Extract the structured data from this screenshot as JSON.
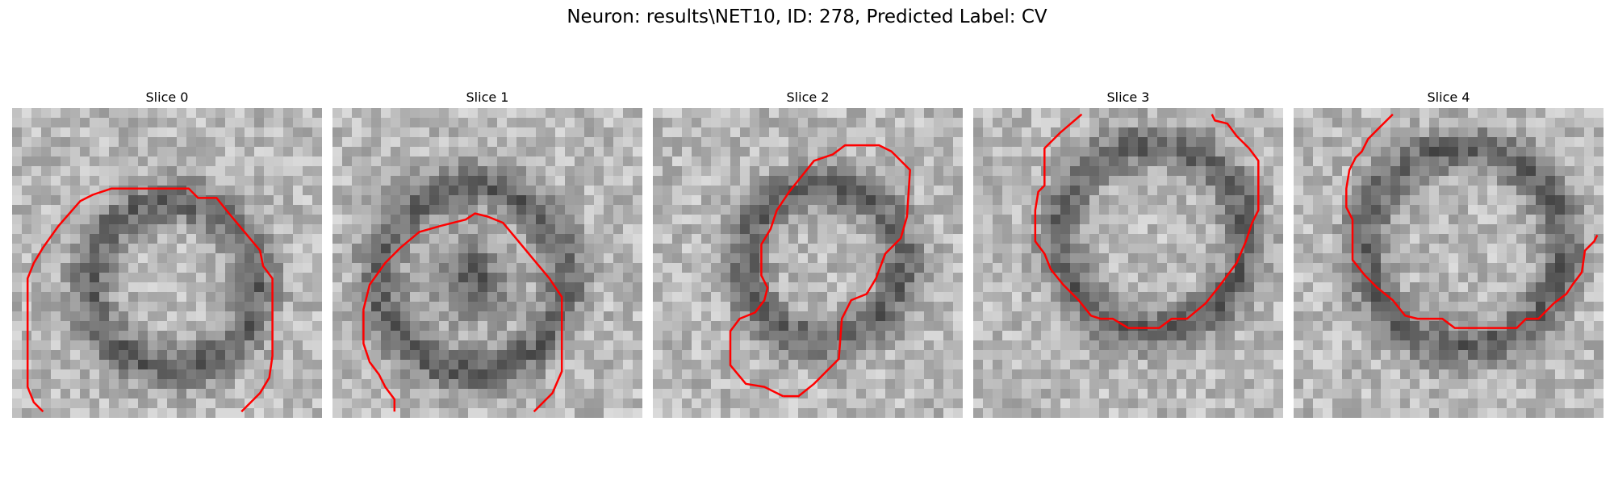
{
  "figure": {
    "title": "Neuron: results\\NET10, ID: 278, Predicted Label: CV",
    "contour_color": "#ff0000",
    "colormap": "grayscale"
  },
  "panels": [
    {
      "title": "Slice 0",
      "contour": [
        [
          0.1,
          0.98
        ],
        [
          0.07,
          0.95
        ],
        [
          0.05,
          0.9
        ],
        [
          0.05,
          0.55
        ],
        [
          0.07,
          0.5
        ],
        [
          0.1,
          0.45
        ],
        [
          0.15,
          0.38
        ],
        [
          0.22,
          0.3
        ],
        [
          0.26,
          0.28
        ],
        [
          0.32,
          0.26
        ],
        [
          0.57,
          0.26
        ],
        [
          0.6,
          0.29
        ],
        [
          0.66,
          0.29
        ],
        [
          0.7,
          0.34
        ],
        [
          0.75,
          0.4
        ],
        [
          0.8,
          0.46
        ],
        [
          0.81,
          0.51
        ],
        [
          0.84,
          0.55
        ],
        [
          0.84,
          0.8
        ],
        [
          0.83,
          0.87
        ],
        [
          0.8,
          0.92
        ],
        [
          0.74,
          0.98
        ]
      ]
    },
    {
      "title": "Slice 1",
      "contour": [
        [
          0.2,
          0.98
        ],
        [
          0.2,
          0.94
        ],
        [
          0.17,
          0.9
        ],
        [
          0.15,
          0.86
        ],
        [
          0.12,
          0.82
        ],
        [
          0.1,
          0.76
        ],
        [
          0.1,
          0.65
        ],
        [
          0.12,
          0.57
        ],
        [
          0.17,
          0.5
        ],
        [
          0.22,
          0.45
        ],
        [
          0.28,
          0.4
        ],
        [
          0.35,
          0.38
        ],
        [
          0.43,
          0.36
        ],
        [
          0.46,
          0.34
        ],
        [
          0.5,
          0.35
        ],
        [
          0.55,
          0.37
        ],
        [
          0.6,
          0.43
        ],
        [
          0.65,
          0.49
        ],
        [
          0.7,
          0.55
        ],
        [
          0.74,
          0.61
        ],
        [
          0.74,
          0.85
        ],
        [
          0.71,
          0.92
        ],
        [
          0.65,
          0.98
        ]
      ]
    },
    {
      "title": "Slice 2",
      "contour": [
        [
          0.42,
          0.93
        ],
        [
          0.47,
          0.93
        ],
        [
          0.52,
          0.89
        ],
        [
          0.56,
          0.85
        ],
        [
          0.6,
          0.81
        ],
        [
          0.61,
          0.68
        ],
        [
          0.64,
          0.62
        ],
        [
          0.69,
          0.6
        ],
        [
          0.72,
          0.55
        ],
        [
          0.75,
          0.47
        ],
        [
          0.8,
          0.42
        ],
        [
          0.82,
          0.35
        ],
        [
          0.83,
          0.2
        ],
        [
          0.77,
          0.14
        ],
        [
          0.73,
          0.12
        ],
        [
          0.62,
          0.12
        ],
        [
          0.58,
          0.15
        ],
        [
          0.52,
          0.17
        ],
        [
          0.48,
          0.22
        ],
        [
          0.44,
          0.27
        ],
        [
          0.4,
          0.33
        ],
        [
          0.38,
          0.39
        ],
        [
          0.35,
          0.44
        ],
        [
          0.35,
          0.54
        ],
        [
          0.37,
          0.58
        ],
        [
          0.36,
          0.62
        ],
        [
          0.33,
          0.66
        ],
        [
          0.28,
          0.68
        ],
        [
          0.25,
          0.72
        ],
        [
          0.25,
          0.83
        ],
        [
          0.3,
          0.89
        ],
        [
          0.36,
          0.9
        ],
        [
          0.42,
          0.93
        ]
      ]
    },
    {
      "title": "Slice 3",
      "contour": [
        [
          0.35,
          0.02
        ],
        [
          0.28,
          0.08
        ],
        [
          0.23,
          0.13
        ],
        [
          0.23,
          0.25
        ],
        [
          0.21,
          0.27
        ],
        [
          0.2,
          0.33
        ],
        [
          0.2,
          0.43
        ],
        [
          0.23,
          0.47
        ],
        [
          0.25,
          0.52
        ],
        [
          0.29,
          0.57
        ],
        [
          0.34,
          0.62
        ],
        [
          0.38,
          0.67
        ],
        [
          0.41,
          0.68
        ],
        [
          0.45,
          0.68
        ],
        [
          0.5,
          0.71
        ],
        [
          0.6,
          0.71
        ],
        [
          0.64,
          0.68
        ],
        [
          0.69,
          0.68
        ],
        [
          0.75,
          0.63
        ],
        [
          0.79,
          0.58
        ],
        [
          0.82,
          0.54
        ],
        [
          0.85,
          0.5
        ],
        [
          0.88,
          0.43
        ],
        [
          0.9,
          0.37
        ],
        [
          0.92,
          0.33
        ],
        [
          0.92,
          0.17
        ],
        [
          0.89,
          0.13
        ],
        [
          0.85,
          0.09
        ],
        [
          0.82,
          0.05
        ],
        [
          0.78,
          0.04
        ],
        [
          0.77,
          0.02
        ]
      ]
    },
    {
      "title": "Slice 4",
      "contour": [
        [
          0.32,
          0.02
        ],
        [
          0.28,
          0.06
        ],
        [
          0.24,
          0.1
        ],
        [
          0.22,
          0.14
        ],
        [
          0.2,
          0.16
        ],
        [
          0.18,
          0.2
        ],
        [
          0.17,
          0.26
        ],
        [
          0.17,
          0.32
        ],
        [
          0.19,
          0.36
        ],
        [
          0.19,
          0.49
        ],
        [
          0.23,
          0.54
        ],
        [
          0.27,
          0.58
        ],
        [
          0.32,
          0.62
        ],
        [
          0.36,
          0.67
        ],
        [
          0.4,
          0.68
        ],
        [
          0.48,
          0.68
        ],
        [
          0.52,
          0.71
        ],
        [
          0.72,
          0.71
        ],
        [
          0.75,
          0.68
        ],
        [
          0.79,
          0.68
        ],
        [
          0.84,
          0.63
        ],
        [
          0.88,
          0.6
        ],
        [
          0.9,
          0.57
        ],
        [
          0.93,
          0.53
        ],
        [
          0.94,
          0.46
        ],
        [
          0.97,
          0.43
        ],
        [
          0.98,
          0.41
        ]
      ]
    }
  ]
}
